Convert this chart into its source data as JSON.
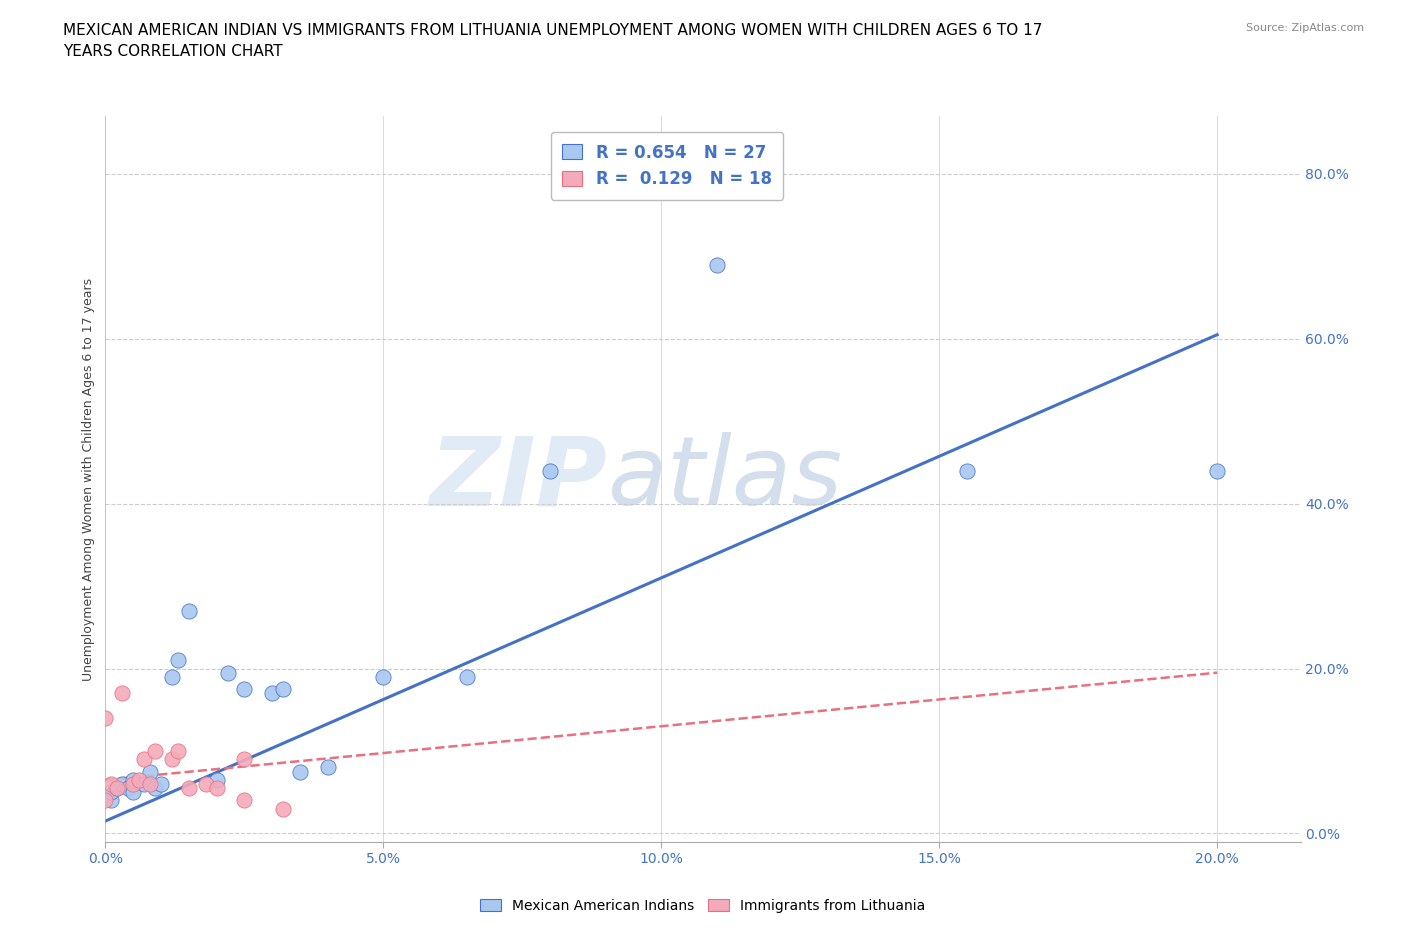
{
  "title": "MEXICAN AMERICAN INDIAN VS IMMIGRANTS FROM LITHUANIA UNEMPLOYMENT AMONG WOMEN WITH CHILDREN AGES 6 TO 17\nYEARS CORRELATION CHART",
  "source": "Source: ZipAtlas.com",
  "ylabel": "Unemployment Among Women with Children Ages 6 to 17 years",
  "xlabel_ticks": [
    "0.0%",
    "5.0%",
    "10.0%",
    "15.0%",
    "20.0%"
  ],
  "ylabel_ticks": [
    "0.0%",
    "20.0%",
    "40.0%",
    "60.0%",
    "80.0%"
  ],
  "xlim": [
    0.0,
    0.215
  ],
  "ylim": [
    -0.01,
    0.87
  ],
  "blue_scatter_x": [
    0.001,
    0.001,
    0.002,
    0.003,
    0.004,
    0.005,
    0.005,
    0.007,
    0.008,
    0.009,
    0.01,
    0.012,
    0.013,
    0.015,
    0.02,
    0.022,
    0.025,
    0.03,
    0.032,
    0.035,
    0.04,
    0.05,
    0.065,
    0.08,
    0.11,
    0.155,
    0.2
  ],
  "blue_scatter_y": [
    0.04,
    0.05,
    0.055,
    0.06,
    0.055,
    0.05,
    0.065,
    0.06,
    0.075,
    0.055,
    0.06,
    0.19,
    0.21,
    0.27,
    0.065,
    0.195,
    0.175,
    0.17,
    0.175,
    0.075,
    0.08,
    0.19,
    0.19,
    0.44,
    0.69,
    0.44,
    0.44
  ],
  "pink_scatter_x": [
    0.0,
    0.0,
    0.001,
    0.002,
    0.003,
    0.005,
    0.006,
    0.007,
    0.008,
    0.009,
    0.012,
    0.013,
    0.015,
    0.018,
    0.02,
    0.025,
    0.025,
    0.032
  ],
  "pink_scatter_y": [
    0.14,
    0.04,
    0.06,
    0.055,
    0.17,
    0.06,
    0.065,
    0.09,
    0.06,
    0.1,
    0.09,
    0.1,
    0.055,
    0.06,
    0.055,
    0.04,
    0.09,
    0.03
  ],
  "blue_line_x": [
    0.0,
    0.2
  ],
  "blue_line_y": [
    0.015,
    0.605
  ],
  "pink_line_x": [
    0.0,
    0.2
  ],
  "pink_line_y": [
    0.065,
    0.195
  ],
  "blue_color": "#A8C8F0",
  "pink_color": "#F4AABB",
  "blue_line_color": "#4472C4",
  "pink_line_color": "#E8707F",
  "R_blue": "0.654",
  "N_blue": "27",
  "R_pink": "0.129",
  "N_pink": "18",
  "legend_label_blue": "Mexican American Indians",
  "legend_label_pink": "Immigrants from Lithuania",
  "watermark_text": "ZIP",
  "watermark_text2": "atlas",
  "grid_color": "#CCCCCC",
  "title_fontsize": 11,
  "axis_label_fontsize": 9,
  "tick_fontsize": 10,
  "marker_size": 120
}
